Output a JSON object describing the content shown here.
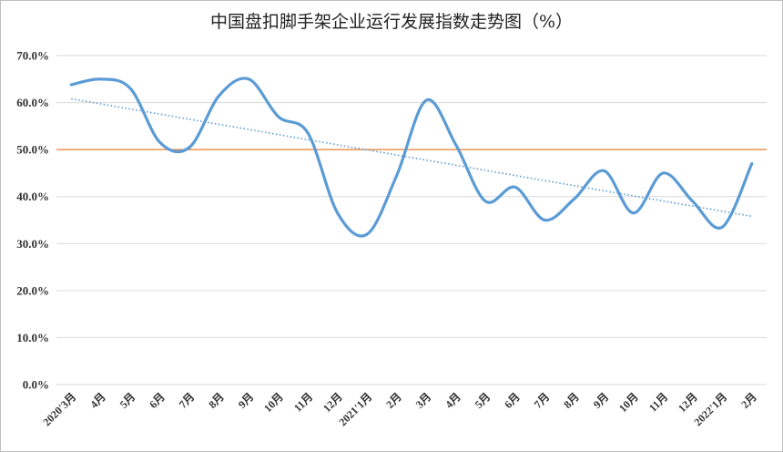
{
  "chart_data": {
    "type": "line",
    "title": "中国盘扣脚手架企业运行发展指数走势图（%）",
    "xlabel": "",
    "ylabel": "",
    "ylim": [
      0,
      70
    ],
    "yticks": [
      "0.0%",
      "10.0%",
      "20.0%",
      "30.0%",
      "40.0%",
      "50.0%",
      "60.0%",
      "70.0%"
    ],
    "categories": [
      "2020'3月",
      "4月",
      "5月",
      "6月",
      "7月",
      "8月",
      "9月",
      "10月",
      "11月",
      "12月",
      "2021'1月",
      "2月",
      "3月",
      "4月",
      "5月",
      "6月",
      "7月",
      "8月",
      "9月",
      "10月",
      "11月",
      "12月",
      "2022'1月",
      "2月"
    ],
    "grid": true,
    "legend": "none",
    "series": [
      {
        "values": [
          63.8,
          65.0,
          63.0,
          51.5,
          50.5,
          61.5,
          65.0,
          57.0,
          53.5,
          36.5,
          32.0,
          44.5,
          60.5,
          51.0,
          39.0,
          42.0,
          35.0,
          39.5,
          45.5,
          36.5,
          45.0,
          39.0,
          33.5,
          47.0
        ],
        "color": "#5b9bd5"
      }
    ],
    "reference_line": {
      "value": 50,
      "color": "#ed7d31"
    },
    "trendline": {
      "start": 60.8,
      "end": 35.8,
      "color": "#5b9bd5"
    }
  }
}
